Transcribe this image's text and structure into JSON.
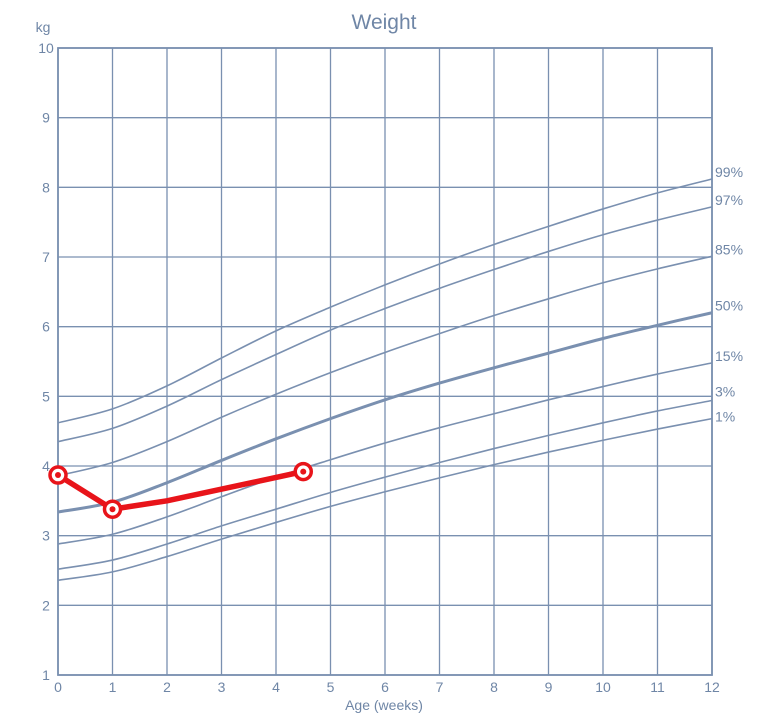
{
  "chart_data": {
    "type": "line",
    "title": "Weight",
    "xlabel": "Age (weeks)",
    "ylabel": "kg",
    "xlim": [
      0,
      12
    ],
    "ylim": [
      1,
      10
    ],
    "x_ticks": [
      "0",
      "1",
      "2",
      "3",
      "4",
      "5",
      "6",
      "7",
      "8",
      "9",
      "10",
      "11",
      "12"
    ],
    "y_ticks": [
      "1",
      "2",
      "3",
      "4",
      "5",
      "6",
      "7",
      "8",
      "9",
      "10"
    ],
    "grid": true,
    "colors": {
      "grid": "#7a90b0",
      "percentile": "#7a90b0",
      "patient": "#e8141a",
      "text": "#6f86a6"
    },
    "percentiles": [
      {
        "name": "99%",
        "x": [
          0,
          1,
          2,
          3,
          4,
          5,
          6,
          7,
          8,
          9,
          10,
          11,
          12
        ],
        "values": [
          4.62,
          4.82,
          5.15,
          5.55,
          5.94,
          6.28,
          6.6,
          6.9,
          7.18,
          7.44,
          7.69,
          7.92,
          8.12
        ]
      },
      {
        "name": "97%",
        "x": [
          0,
          1,
          2,
          3,
          4,
          5,
          6,
          7,
          8,
          9,
          10,
          11,
          12
        ],
        "values": [
          4.35,
          4.54,
          4.86,
          5.24,
          5.6,
          5.95,
          6.26,
          6.55,
          6.82,
          7.08,
          7.32,
          7.53,
          7.72
        ]
      },
      {
        "name": "85%",
        "x": [
          0,
          1,
          2,
          3,
          4,
          5,
          6,
          7,
          8,
          9,
          10,
          11,
          12
        ],
        "values": [
          3.86,
          4.05,
          4.35,
          4.7,
          5.03,
          5.34,
          5.63,
          5.9,
          6.16,
          6.4,
          6.63,
          6.83,
          7.01
        ]
      },
      {
        "name": "50%",
        "x": [
          0,
          1,
          2,
          3,
          4,
          5,
          6,
          7,
          8,
          9,
          10,
          11,
          12
        ],
        "values": [
          3.34,
          3.48,
          3.76,
          4.08,
          4.39,
          4.68,
          4.95,
          5.19,
          5.41,
          5.62,
          5.83,
          6.02,
          6.2
        ]
      },
      {
        "name": "15%",
        "x": [
          0,
          1,
          2,
          3,
          4,
          5,
          6,
          7,
          8,
          9,
          10,
          11,
          12
        ],
        "values": [
          2.88,
          3.02,
          3.27,
          3.56,
          3.84,
          4.09,
          4.33,
          4.55,
          4.75,
          4.95,
          5.14,
          5.32,
          5.48
        ]
      },
      {
        "name": "3%",
        "x": [
          0,
          1,
          2,
          3,
          4,
          5,
          6,
          7,
          8,
          9,
          10,
          11,
          12
        ],
        "values": [
          2.52,
          2.65,
          2.88,
          3.14,
          3.38,
          3.62,
          3.84,
          4.05,
          4.25,
          4.44,
          4.62,
          4.79,
          4.94
        ]
      },
      {
        "name": "1%",
        "x": [
          0,
          1,
          2,
          3,
          4,
          5,
          6,
          7,
          8,
          9,
          10,
          11,
          12
        ],
        "values": [
          2.36,
          2.48,
          2.7,
          2.95,
          3.19,
          3.42,
          3.63,
          3.83,
          4.02,
          4.2,
          4.37,
          4.53,
          4.68
        ]
      }
    ],
    "series": [
      {
        "x": [
          0,
          1,
          2,
          4.5
        ],
        "values": [
          3.87,
          3.38,
          3.5,
          3.92
        ],
        "markers": [
          true,
          true,
          false,
          true
        ]
      }
    ]
  }
}
